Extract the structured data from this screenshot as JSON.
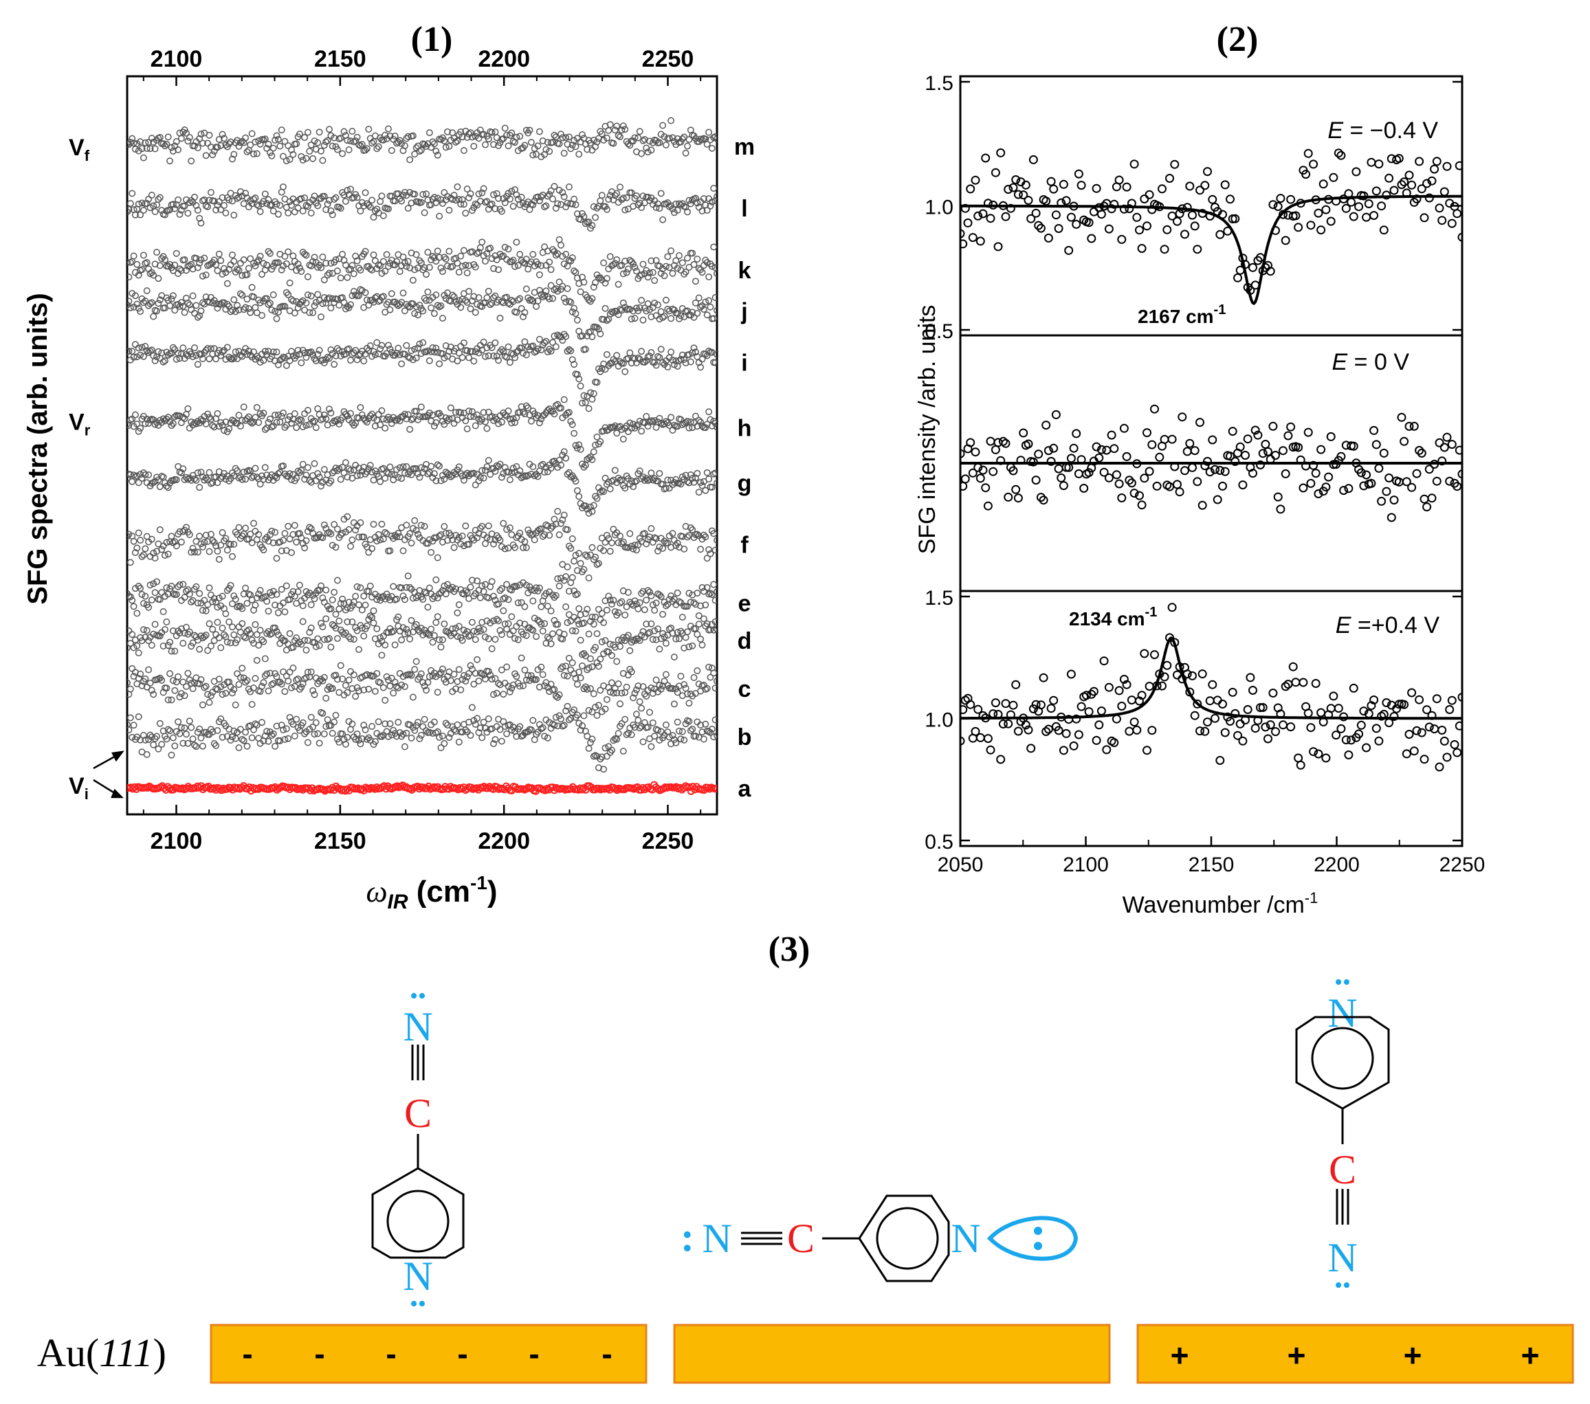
{
  "panel_labels": {
    "p1": "(1)",
    "p2": "(2)",
    "p3": "(3)"
  },
  "colors": {
    "trace": "#555555",
    "trace_a": "#ff2020",
    "nitrogen": "#1aa7ec",
    "carbon": "#ee1c1c",
    "gold": "#fbb800",
    "gold_edge": "#e8801a"
  },
  "chart_data": [
    {
      "id": "panel1",
      "type": "scatter",
      "title": "(1)",
      "xlabel_symbol": "ω",
      "xlabel_sub": "IR",
      "xlabel_unit": " (cm",
      "xlabel_sup": "-1",
      "xlabel_end": ")",
      "ylabel": "SFG spectra (arb. units)",
      "xlim": [
        2085,
        2265
      ],
      "xticks": [
        2100,
        2150,
        2200,
        2250
      ],
      "xticklabels": [
        "2100",
        "2150",
        "2200",
        "2250"
      ],
      "potential_labels": [
        {
          "main": "V",
          "sub": "f",
          "level": 0.95
        },
        {
          "main": "V",
          "sub": "r",
          "level": 0.55
        },
        {
          "main": "V",
          "sub": "i",
          "level": 0.02
        }
      ],
      "series": [
        {
          "name": "m",
          "baseline": 0.955,
          "step": 0,
          "feature_center": 2225,
          "noise": 0.035
        },
        {
          "name": "l",
          "baseline": 0.865,
          "step": 0.05,
          "feature_center": 2222,
          "noise": 0.035
        },
        {
          "name": "k",
          "baseline": 0.775,
          "step": 0.07,
          "feature_center": 2222,
          "noise": 0.04
        },
        {
          "name": "j",
          "baseline": 0.715,
          "step": 0.09,
          "feature_center": 2222,
          "noise": 0.03
        },
        {
          "name": "i",
          "baseline": 0.64,
          "step": 0.11,
          "feature_center": 2222,
          "noise": 0.025
        },
        {
          "name": "h",
          "baseline": 0.545,
          "step": 0.1,
          "feature_center": 2222,
          "noise": 0.025
        },
        {
          "name": "g",
          "baseline": 0.465,
          "step": 0.1,
          "feature_center": 2222,
          "noise": 0.025
        },
        {
          "name": "f",
          "baseline": 0.375,
          "step": 0.08,
          "feature_center": 2222,
          "noise": 0.04
        },
        {
          "name": "e",
          "baseline": 0.29,
          "step": 0.08,
          "feature_center": 2223,
          "noise": 0.04
        },
        {
          "name": "d",
          "baseline": 0.235,
          "step": 0.07,
          "feature_center": 2224,
          "noise": 0.04
        },
        {
          "name": "c",
          "baseline": 0.165,
          "step": 0.06,
          "feature_center": 2225,
          "noise": 0.045
        },
        {
          "name": "b",
          "baseline": 0.095,
          "step": 0.06,
          "feature_center": 2226,
          "noise": 0.04
        },
        {
          "name": "a",
          "baseline": 0.02,
          "step": 0,
          "feature_center": 2226,
          "noise": 0.006
        }
      ]
    },
    {
      "id": "panel2",
      "type": "scatter",
      "title": "(2)",
      "xlabel": "Wavenumber /cm",
      "xlabel_sup": "-1",
      "ylabel": "SFG intensity /arb. units",
      "xlim": [
        2050,
        2250
      ],
      "xticks": [
        2050,
        2100,
        2150,
        2200,
        2250
      ],
      "xticklabels": [
        "2050",
        "2100",
        "2150",
        "2200",
        "2250"
      ],
      "subplots": [
        {
          "label_italic": "E",
          "label_rest": " = −0.4 V",
          "ylim": [
            0.5,
            1.5
          ],
          "yticks": [
            0.5,
            1.0,
            1.5
          ],
          "yticklabels": [
            "0.5",
            "1.0",
            "1.5"
          ],
          "fit": "dip",
          "peak_center": 2167,
          "peak_amplitude": -0.4,
          "peak_width": 5,
          "annotation_main": "2167 cm",
          "annotation_sup": "-1"
        },
        {
          "label_italic": "E",
          "label_rest": " = 0 V",
          "ylim": [
            0.5,
            1.5
          ],
          "yticks": [],
          "yticklabels": [],
          "fit": "flat",
          "baseline": 1.0
        },
        {
          "label_italic": "E",
          "label_rest": " =+0.4 V",
          "ylim": [
            0.5,
            1.5
          ],
          "yticks": [
            0.5,
            1.0,
            1.5
          ],
          "yticklabels": [
            "0.5",
            "1.0",
            "1.5"
          ],
          "fit": "peak",
          "peak_center": 2134,
          "peak_amplitude": 0.33,
          "peak_width": 5,
          "annotation_main": "2134 cm",
          "annotation_sup": "-1"
        }
      ]
    }
  ],
  "schematic": {
    "surface_label_prefix": "Au(",
    "surface_label_italic": "111",
    "surface_label_suffix": ")",
    "atom_n": "N",
    "atom_c": "C",
    "lone_pair": ":",
    "lone_pair_vertical": "••",
    "bar1_charges": [
      "-",
      "-",
      "-",
      "-",
      "-",
      "-"
    ],
    "bar3_charges": [
      "+",
      "+",
      "+",
      "+"
    ]
  }
}
